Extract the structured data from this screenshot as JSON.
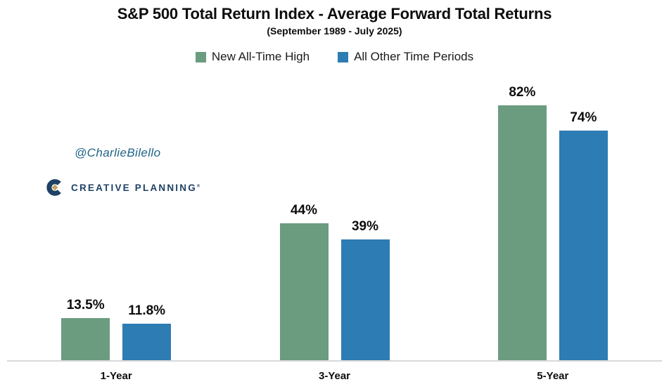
{
  "title": "S&P 500 Total Return Index - Average Forward Total Returns",
  "subtitle": "(September 1989 - July 2025)",
  "legend": [
    {
      "label": "New All-Time High",
      "color": "#6b9c80"
    },
    {
      "label": "All Other Time Periods",
      "color": "#2d7cb4"
    }
  ],
  "watermark": {
    "handle": "@CharlieBilello",
    "logo_text": "CREATIVE PLANNING",
    "logo_mark": "®"
  },
  "colors": {
    "series_green": "#6b9c80",
    "series_blue": "#2d7cb4",
    "axis_line": "#d9d9d9",
    "logo_navy": "#1e4165",
    "logo_gold": "#c4a467",
    "handle_blue": "#1f6488",
    "text": "#0d0d0d",
    "background": "#ffffff"
  },
  "chart_data": {
    "type": "bar",
    "title": "S&P 500 Total Return Index - Average Forward Total Returns",
    "subtitle": "(September 1989 - July 2025)",
    "categories": [
      "1-Year",
      "3-Year",
      "5-Year"
    ],
    "series": [
      {
        "name": "New All-Time High",
        "color": "#6b9c80",
        "values": [
          13.5,
          44,
          82
        ]
      },
      {
        "name": "All Other Time Periods",
        "color": "#2d7cb4",
        "values": [
          11.8,
          39,
          74
        ]
      }
    ],
    "value_suffix": "%",
    "xlabel": "",
    "ylabel": "",
    "ylim": [
      0,
      90
    ],
    "grid": false,
    "y_axis_visible": false,
    "legend_position": "top",
    "data_labels": true
  }
}
